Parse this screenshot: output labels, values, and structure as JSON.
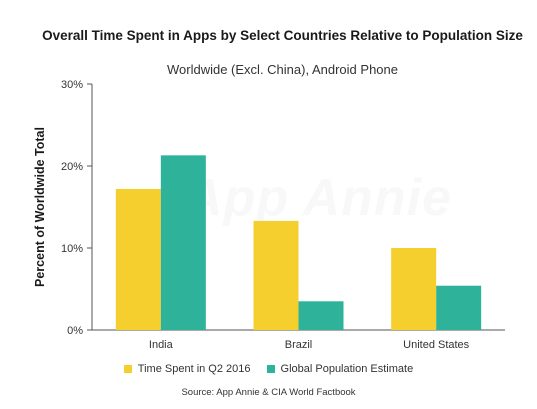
{
  "chart_data": {
    "type": "bar",
    "title": "Overall Time Spent in Apps by Select Countries Relative to Population Size",
    "subtitle": "Worldwide (Excl. China), Android Phone",
    "ylabel": "Percent of Worldwide Total",
    "xlabel": "",
    "categories": [
      "India",
      "Brazil",
      "United States"
    ],
    "ylim": [
      0,
      30
    ],
    "yticks": [
      "0%",
      "10%",
      "20%",
      "30%"
    ],
    "ytick_values": [
      0,
      10,
      20,
      30
    ],
    "grid": false,
    "legend_position": "bottom",
    "series": [
      {
        "name": "Time Spent in Q2 2016",
        "color": "#f5cf2e",
        "values": [
          17.2,
          13.3,
          10.0
        ]
      },
      {
        "name": "Global Population Estimate",
        "color": "#2eb39a",
        "values": [
          21.3,
          3.5,
          5.4
        ]
      }
    ],
    "source": "Source: App Annie & CIA World Factbook",
    "watermark": "App Annie"
  }
}
